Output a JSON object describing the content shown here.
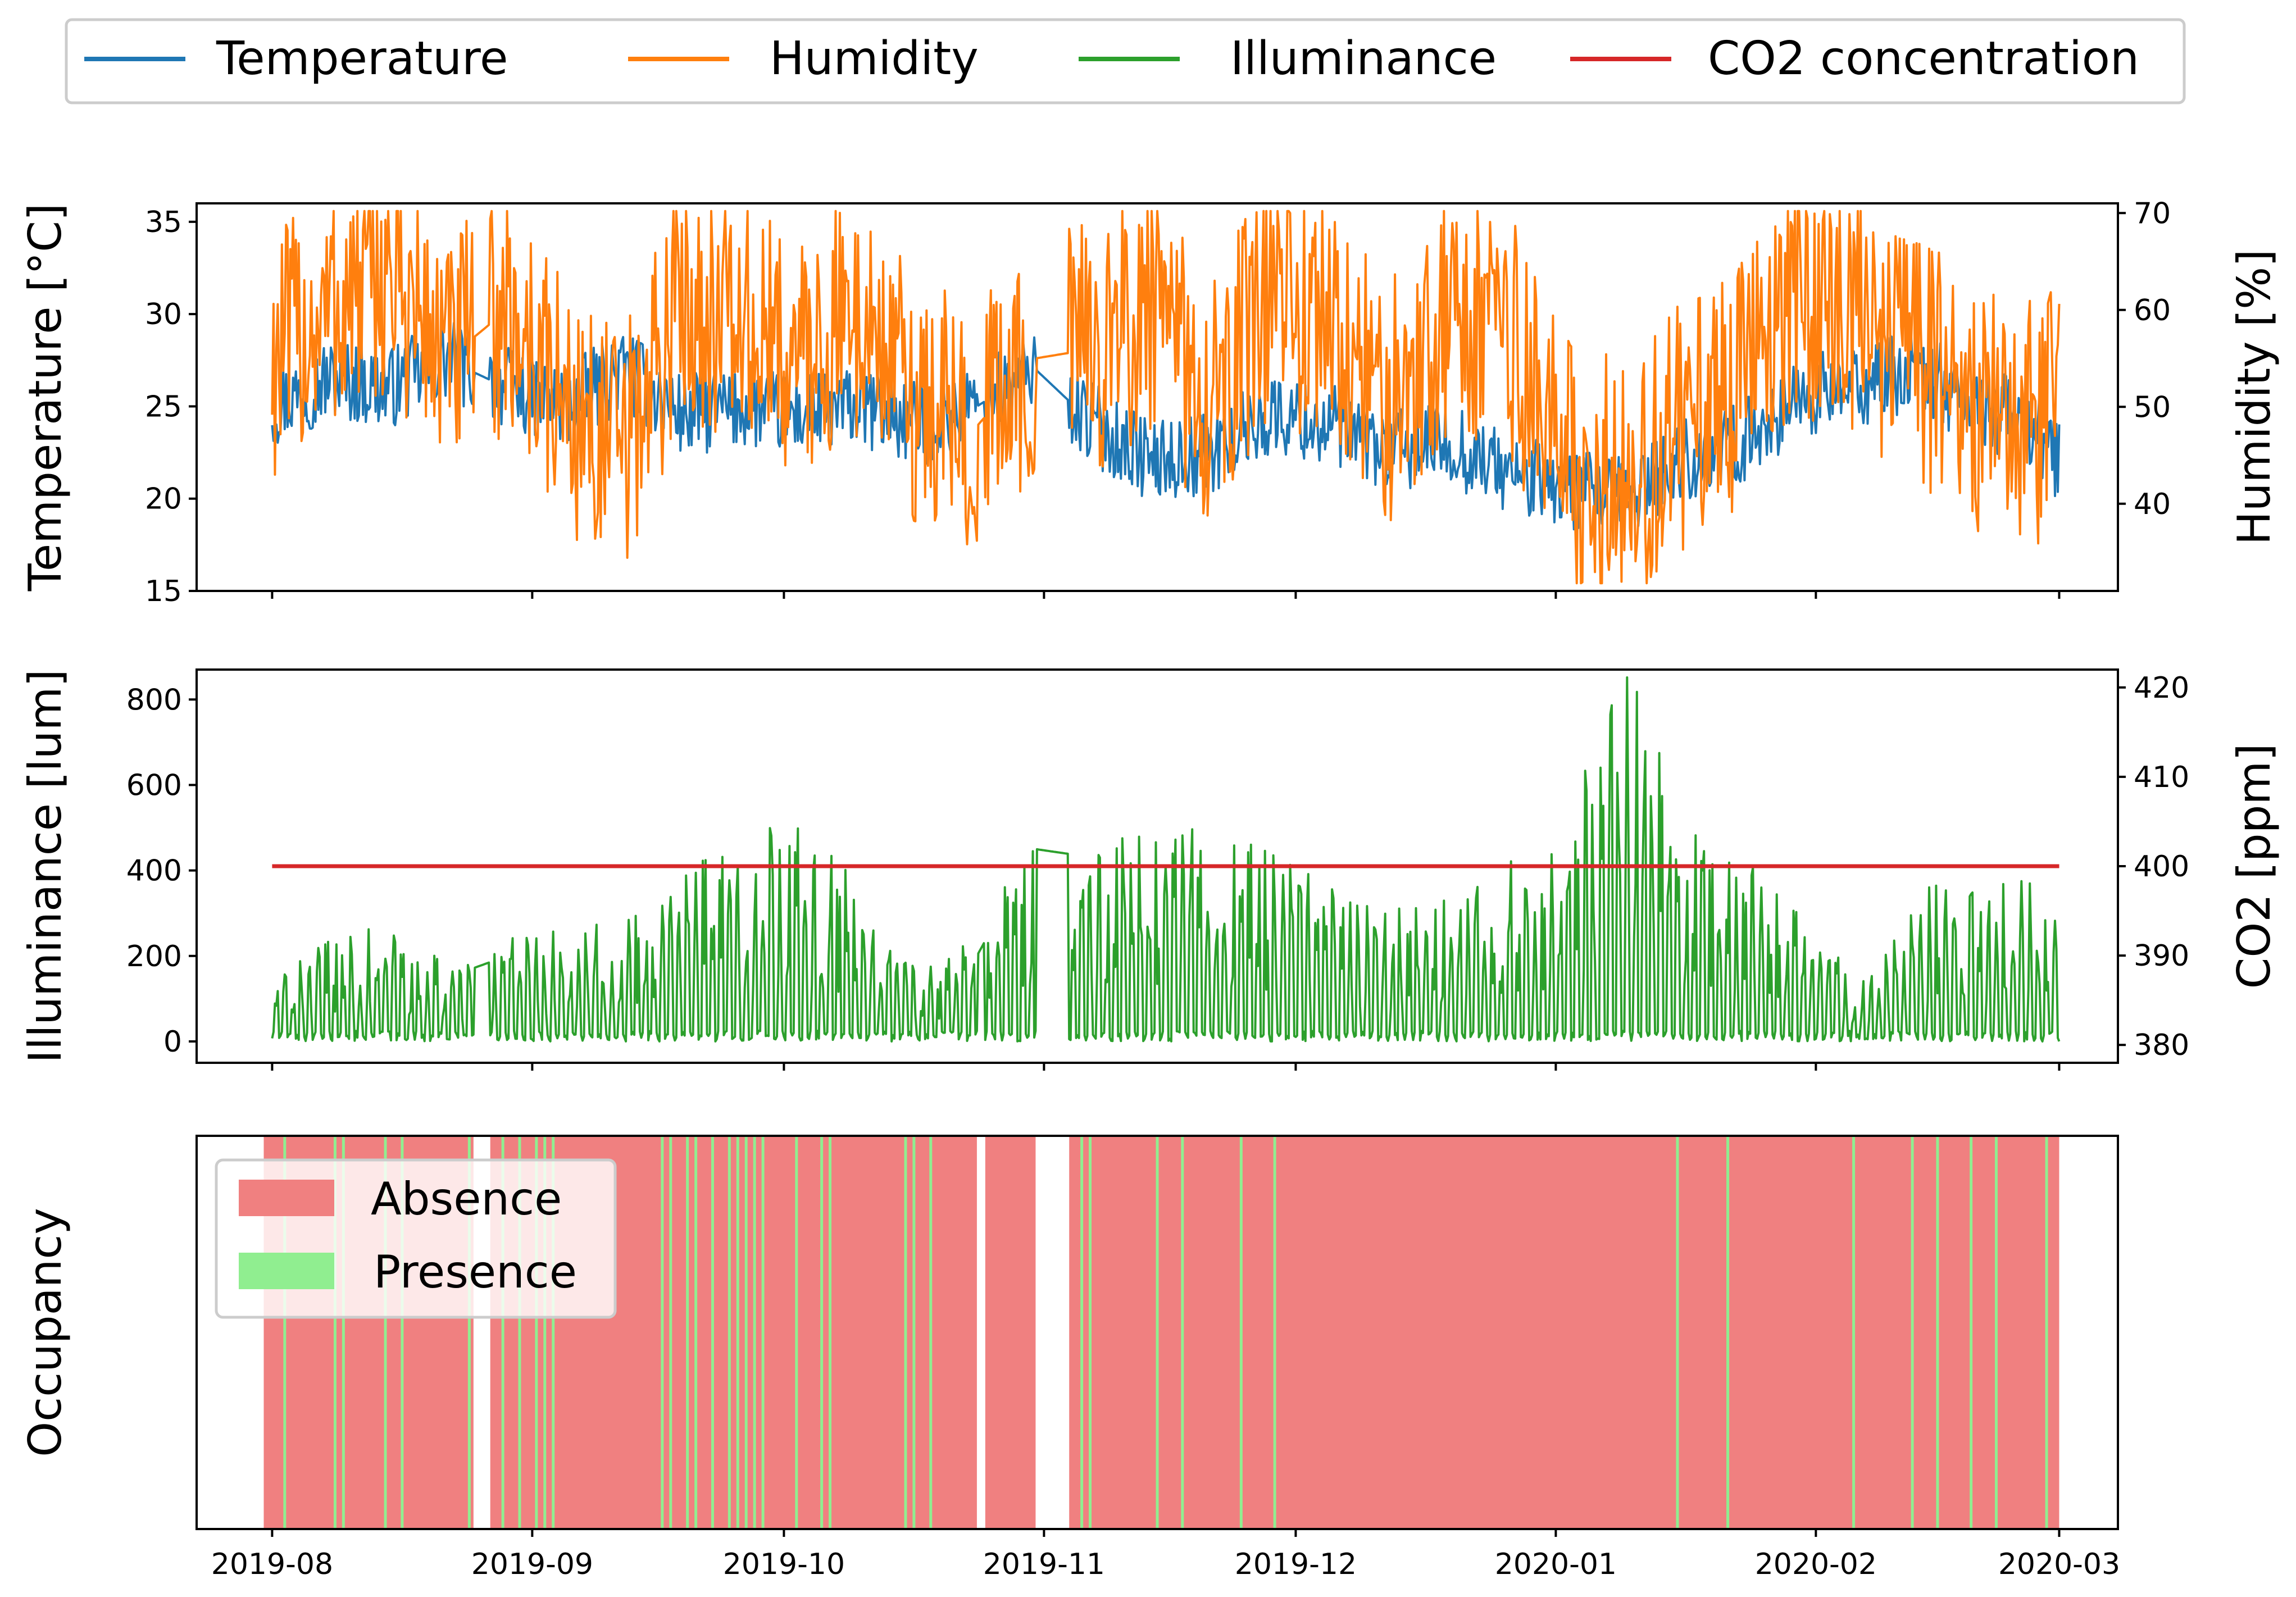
{
  "chart_data": [
    {
      "type": "line",
      "panel": "temperature-humidity",
      "left_axis": {
        "label": "Temperature [°C]",
        "ylim": [
          15,
          36
        ],
        "ticks": [
          15,
          20,
          25,
          30,
          35
        ]
      },
      "right_axis": {
        "label": "Humidity [%]",
        "ylim": [
          31,
          71
        ],
        "ticks": [
          40,
          50,
          60,
          70
        ]
      },
      "x_dates": [
        "2019-08-01",
        "2019-08-08",
        "2019-08-15",
        "2019-08-22",
        "2019-08-29",
        "2019-09-05",
        "2019-09-12",
        "2019-09-19",
        "2019-09-26",
        "2019-10-03",
        "2019-10-10",
        "2019-10-17",
        "2019-10-24",
        "2019-10-31",
        "2019-11-07",
        "2019-11-14",
        "2019-11-21",
        "2019-11-28",
        "2019-12-05",
        "2019-12-12",
        "2019-12-19",
        "2019-12-26",
        "2020-01-02",
        "2020-01-09",
        "2020-01-16",
        "2020-01-23",
        "2020-01-30",
        "2020-02-06",
        "2020-02-13",
        "2020-02-20",
        "2020-02-27",
        "2020-03-01"
      ],
      "series": [
        {
          "name": "Temperature",
          "axis": "left",
          "color": "#1f77b4",
          "values": [
            25,
            26.5,
            26,
            27.5,
            26,
            25,
            27,
            24.5,
            25,
            24.5,
            25,
            24,
            25,
            27,
            24,
            22,
            22.5,
            24.5,
            24,
            22.5,
            23,
            21.5,
            20.5,
            20,
            22,
            23,
            25.5,
            26,
            27,
            25,
            24,
            22
          ]
        },
        {
          "name": "Humidity",
          "axis": "right",
          "color": "#ff7f0e",
          "values": [
            55,
            60,
            64,
            55,
            60,
            50,
            45,
            62,
            58,
            55,
            60,
            50,
            48,
            55,
            56,
            60,
            50,
            62,
            58,
            50,
            60,
            58,
            45,
            42,
            48,
            52,
            62,
            58,
            55,
            50,
            48,
            52
          ]
        }
      ]
    },
    {
      "type": "line",
      "panel": "illuminance-co2",
      "left_axis": {
        "label": "Illuminance [lum]",
        "ylim": [
          -50,
          870
        ],
        "ticks": [
          0,
          200,
          400,
          600,
          800
        ]
      },
      "right_axis": {
        "label": "CO2 [ppm]",
        "ylim": [
          378,
          422
        ],
        "ticks": [
          380,
          390,
          400,
          410,
          420
        ]
      },
      "x_dates": [
        "2019-08-01",
        "2019-08-08",
        "2019-08-15",
        "2019-08-22",
        "2019-08-29",
        "2019-09-05",
        "2019-09-12",
        "2019-09-19",
        "2019-09-26",
        "2019-10-03",
        "2019-10-10",
        "2019-10-17",
        "2019-10-24",
        "2019-10-31",
        "2019-11-07",
        "2019-11-14",
        "2019-11-21",
        "2019-11-28",
        "2019-12-05",
        "2019-12-12",
        "2019-12-19",
        "2019-12-26",
        "2020-01-02",
        "2020-01-09",
        "2020-01-16",
        "2020-01-23",
        "2020-01-30",
        "2020-02-06",
        "2020-02-13",
        "2020-02-20",
        "2020-02-27",
        "2020-03-01"
      ],
      "series": [
        {
          "name": "Illuminance",
          "axis": "left",
          "color": "#2ca02c",
          "values": [
            120,
            200,
            230,
            150,
            200,
            220,
            250,
            350,
            400,
            450,
            300,
            150,
            200,
            450,
            430,
            400,
            450,
            380,
            300,
            250,
            300,
            350,
            400,
            830,
            420,
            350,
            300,
            100,
            300,
            320,
            330,
            250
          ]
        },
        {
          "name": "CO2 concentration",
          "axis": "right",
          "color": "#d62728",
          "values": [
            400,
            400,
            400,
            400,
            400,
            400,
            400,
            400,
            400,
            400,
            400,
            400,
            400,
            400,
            400,
            400,
            400,
            400,
            400,
            400,
            400,
            400,
            400,
            400,
            400,
            400,
            400,
            400,
            400,
            400,
            400,
            400
          ]
        }
      ]
    },
    {
      "type": "timeline",
      "panel": "occupancy",
      "ylabel": "Occupancy",
      "categories": [
        "Absence",
        "Presence"
      ],
      "colors": {
        "Absence": "#f08080",
        "Presence": "#90ee90"
      },
      "absence_span": [
        "2019-07-31",
        "2020-03-01"
      ],
      "gaps_no_data": [
        [
          "2019-08-25",
          "2019-08-27"
        ],
        [
          "2019-10-24",
          "2019-10-25"
        ],
        [
          "2019-10-31",
          "2019-11-04"
        ]
      ],
      "presence_dates": [
        "2019-08-02",
        "2019-08-08",
        "2019-08-09",
        "2019-08-14",
        "2019-08-16",
        "2019-08-24",
        "2019-08-28",
        "2019-08-30",
        "2019-09-01",
        "2019-09-02",
        "2019-09-03",
        "2019-09-16",
        "2019-09-17",
        "2019-09-19",
        "2019-09-20",
        "2019-09-22",
        "2019-09-24",
        "2019-09-25",
        "2019-09-26",
        "2019-09-27",
        "2019-09-28",
        "2019-10-02",
        "2019-10-05",
        "2019-10-06",
        "2019-10-15",
        "2019-10-16",
        "2019-10-18",
        "2019-11-05",
        "2019-11-06",
        "2019-11-14",
        "2019-11-17",
        "2019-11-24",
        "2019-11-28",
        "2020-01-15",
        "2020-01-21",
        "2020-02-05",
        "2020-02-12",
        "2020-02-15",
        "2020-02-19",
        "2020-02-22",
        "2020-02-28"
      ],
      "xlim": [
        "2019-07-23",
        "2020-03-08"
      ],
      "xticks": [
        "2019-08",
        "2019-09",
        "2019-10",
        "2019-11",
        "2019-12",
        "2020-01",
        "2020-02",
        "2020-03"
      ]
    }
  ],
  "legend": {
    "items": [
      {
        "label": "Temperature",
        "color": "#1f77b4"
      },
      {
        "label": "Humidity",
        "color": "#ff7f0e"
      },
      {
        "label": "Illuminance",
        "color": "#2ca02c"
      },
      {
        "label": "CO2 concentration",
        "color": "#d62728"
      }
    ]
  },
  "occupancy_legend": {
    "items": [
      {
        "label": "Absence",
        "color": "#f08080"
      },
      {
        "label": "Presence",
        "color": "#90ee90"
      }
    ]
  }
}
